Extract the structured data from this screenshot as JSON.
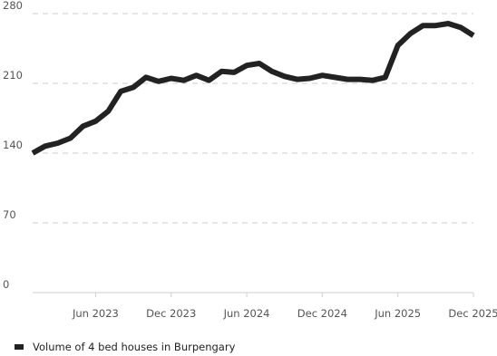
{
  "chart_data": {
    "type": "line",
    "title": "",
    "xlabel": "",
    "ylabel": "",
    "ylim": [
      0,
      280
    ],
    "y_ticks": [
      0,
      70,
      140,
      210,
      280
    ],
    "y_tick_labels": [
      "0",
      "70",
      "140",
      "210",
      "280"
    ],
    "x_ticks": [
      "2023-06",
      "2023-12",
      "2024-06",
      "2024-12",
      "2025-06",
      "2025-12"
    ],
    "x_tick_labels": [
      "Jun 2023",
      "Dec 2023",
      "Jun 2024",
      "Dec 2024",
      "Jun 2025",
      "Dec 2025"
    ],
    "grid": "horizontal dashed",
    "legend_position": "bottom-left",
    "series": [
      {
        "name": "Volume of 4 bed houses in Burpengary",
        "color": "#222222",
        "points": [
          [
            "2023-01",
            140
          ],
          [
            "2023-02",
            147
          ],
          [
            "2023-03",
            150
          ],
          [
            "2023-04",
            155
          ],
          [
            "2023-05",
            167
          ],
          [
            "2023-06",
            172
          ],
          [
            "2023-07",
            182
          ],
          [
            "2023-08",
            202
          ],
          [
            "2023-09",
            206
          ],
          [
            "2023-10",
            216
          ],
          [
            "2023-11",
            212
          ],
          [
            "2023-12",
            215
          ],
          [
            "2024-01",
            213
          ],
          [
            "2024-02",
            218
          ],
          [
            "2024-03",
            213
          ],
          [
            "2024-04",
            222
          ],
          [
            "2024-05",
            221
          ],
          [
            "2024-06",
            228
          ],
          [
            "2024-07",
            230
          ],
          [
            "2024-08",
            222
          ],
          [
            "2024-09",
            217
          ],
          [
            "2024-10",
            214
          ],
          [
            "2024-11",
            215
          ],
          [
            "2024-12",
            218
          ],
          [
            "2025-01",
            216
          ],
          [
            "2025-02",
            214
          ],
          [
            "2025-03",
            214
          ],
          [
            "2025-04",
            213
          ],
          [
            "2025-05",
            216
          ],
          [
            "2025-06",
            248
          ],
          [
            "2025-07",
            260
          ],
          [
            "2025-08",
            268
          ],
          [
            "2025-09",
            268
          ],
          [
            "2025-10",
            270
          ],
          [
            "2025-11",
            266
          ],
          [
            "2025-12",
            258
          ]
        ]
      }
    ]
  }
}
